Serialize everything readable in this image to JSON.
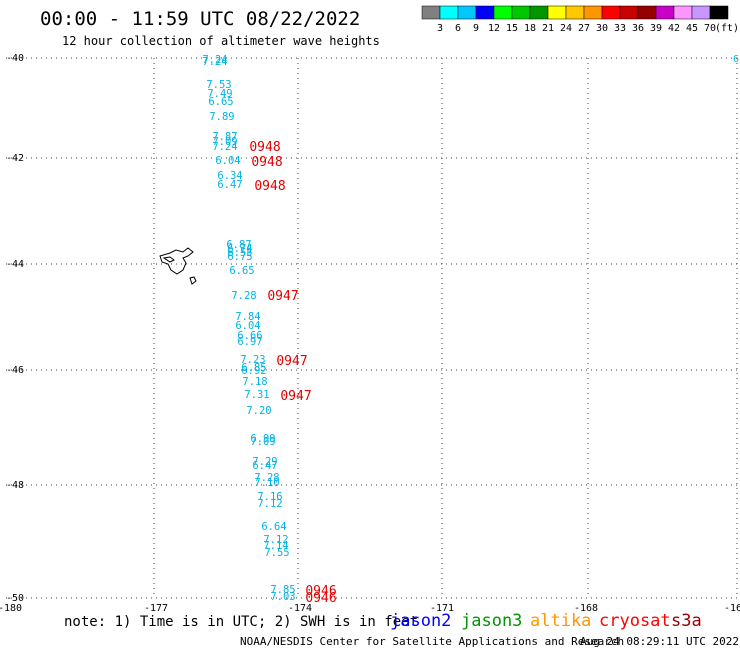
{
  "title": "00:00 - 11:59 UTC 08/22/2022",
  "subtitle": "12 hour collection of altimeter wave heights",
  "legend": {
    "unit": "(ft)",
    "colors": [
      "#808080",
      "#00ffff",
      "#00c8ff",
      "#0000ff",
      "#00ff00",
      "#00c800",
      "#009600",
      "#ffff00",
      "#ffc800",
      "#ff9600",
      "#ff0000",
      "#c80000",
      "#960000",
      "#c800c8",
      "#ff96ff",
      "#c896ff",
      "#000000"
    ],
    "labels": [
      "3",
      "6",
      "9",
      "12",
      "15",
      "18",
      "21",
      "24",
      "27",
      "30",
      "33",
      "36",
      "39",
      "42",
      "45",
      "70"
    ]
  },
  "axes": {
    "lat_labels": [
      "-40",
      "-42",
      "-44",
      "-46",
      "-48",
      "-50"
    ],
    "lon_labels": [
      "-180",
      "-177",
      "-174",
      "-171",
      "-168",
      "-16"
    ],
    "right_edge_label": "6"
  },
  "wave_heights": [
    "7.24",
    "7.24",
    "7.53",
    "7.49",
    "6.65",
    "7.89",
    "7.87",
    "7.09",
    "7.24",
    "6.04",
    "6.34",
    "6.47",
    "6.87",
    "6.74",
    "6.55",
    "6.75",
    "6.65",
    "7.28",
    "7.84",
    "6.04",
    "6.66",
    "6.97",
    "7.23",
    "6.85",
    "6.92",
    "7.18",
    "7.31",
    "7.20",
    "6.99",
    "7.09",
    "7.29",
    "6.47",
    "7.28",
    "7.10",
    "7.16",
    "7.12",
    "6.64",
    "7.12",
    "7.14",
    "7.55",
    "7.85",
    "7.03"
  ],
  "times": [
    "0948",
    "0948",
    "0948",
    "0947",
    "0947",
    "0947",
    "0946",
    "0946"
  ],
  "colors": {
    "swh": "#00b4e6",
    "time": "#e60000",
    "grid": "#404040"
  },
  "note": "note: 1) Time is in UTC; 2) SWH is in feet",
  "satellites": [
    {
      "name": "jason2",
      "color": "#0000ff"
    },
    {
      "name": "jason3",
      "color": "#009600"
    },
    {
      "name": "altika",
      "color": "#ff9600"
    },
    {
      "name": "cryosat",
      "color": "#ff0000"
    },
    {
      "name": "s3a",
      "color": "#960000"
    }
  ],
  "footer_left": "NOAA/NESDIS Center for Satellite Applications and Research",
  "footer_right": "Aug 24 08:29:11 UTC 2022"
}
